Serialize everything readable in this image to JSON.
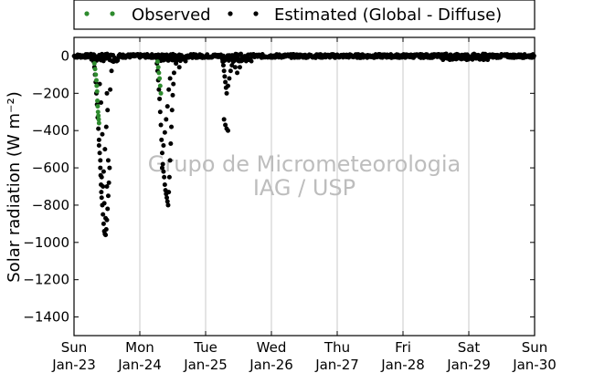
{
  "chart_data": {
    "type": "scatter",
    "title": "",
    "ylabel": "Solar radiation (W m⁻²)",
    "ylim": [
      -1500,
      100
    ],
    "yticks": [
      0,
      -200,
      -400,
      -600,
      -800,
      -1000,
      -1200,
      -1400
    ],
    "xlim": [
      0,
      7
    ],
    "x_ticks": [
      {
        "day": 0,
        "line1": "Sun",
        "line2": "Jan-23"
      },
      {
        "day": 1,
        "line1": "Mon",
        "line2": "Jan-24"
      },
      {
        "day": 2,
        "line1": "Tue",
        "line2": "Jan-25"
      },
      {
        "day": 3,
        "line1": "Wed",
        "line2": "Jan-26"
      },
      {
        "day": 4,
        "line1": "Thu",
        "line2": "Jan-27"
      },
      {
        "day": 5,
        "line1": "Fri",
        "line2": "Jan-28"
      },
      {
        "day": 6,
        "line1": "Sat",
        "line2": "Jan-29"
      },
      {
        "day": 7,
        "line1": "Sun",
        "line2": "Jan-30"
      }
    ],
    "grid": "vertical",
    "legend_position": "top",
    "series": [
      {
        "name": "Observed",
        "color": "#2e8b2e",
        "points": [
          [
            0.31,
            -40
          ],
          [
            0.32,
            -70
          ],
          [
            0.33,
            -100
          ],
          [
            0.34,
            -130
          ],
          [
            0.345,
            -160
          ],
          [
            0.35,
            -190
          ],
          [
            0.355,
            -240
          ],
          [
            0.36,
            -270
          ],
          [
            0.365,
            -300
          ],
          [
            0.37,
            -320
          ],
          [
            0.375,
            -340
          ],
          [
            0.38,
            -360
          ],
          [
            1.27,
            -30
          ],
          [
            1.28,
            -60
          ],
          [
            1.29,
            -90
          ],
          [
            1.3,
            -120
          ],
          [
            1.31,
            -160
          ],
          [
            1.32,
            -200
          ]
        ]
      },
      {
        "name": "Estimated (Global - Diffuse)",
        "color": "#000000",
        "points": [
          [
            0.29,
            -10
          ],
          [
            0.3,
            -30
          ],
          [
            0.31,
            -60
          ],
          [
            0.32,
            -100
          ],
          [
            0.33,
            -140
          ],
          [
            0.34,
            -200
          ],
          [
            0.35,
            -260
          ],
          [
            0.36,
            -330
          ],
          [
            0.37,
            -390
          ],
          [
            0.38,
            -450
          ],
          [
            0.39,
            -520
          ],
          [
            0.4,
            -600
          ],
          [
            0.405,
            -640
          ],
          [
            0.41,
            -690
          ],
          [
            0.415,
            -730
          ],
          [
            0.42,
            -760
          ],
          [
            0.43,
            -800
          ],
          [
            0.44,
            -850
          ],
          [
            0.45,
            -900
          ],
          [
            0.46,
            -940
          ],
          [
            0.47,
            -955
          ],
          [
            0.48,
            -960
          ],
          [
            0.49,
            -930
          ],
          [
            0.5,
            -880
          ],
          [
            0.51,
            -820
          ],
          [
            0.52,
            -750
          ],
          [
            0.53,
            -680
          ],
          [
            0.54,
            -600
          ],
          [
            0.38,
            -480
          ],
          [
            0.4,
            -560
          ],
          [
            0.42,
            -650
          ],
          [
            0.44,
            -700
          ],
          [
            0.46,
            -790
          ],
          [
            0.48,
            -870
          ],
          [
            0.5,
            -700
          ],
          [
            0.52,
            -560
          ],
          [
            0.47,
            -500
          ],
          [
            0.49,
            -380
          ],
          [
            0.51,
            -290
          ],
          [
            0.55,
            -180
          ],
          [
            0.57,
            -80
          ],
          [
            0.6,
            -30
          ],
          [
            0.62,
            -10
          ],
          [
            0.45,
            -620
          ],
          [
            0.43,
            -420
          ],
          [
            0.41,
            -250
          ],
          [
            0.39,
            -150
          ],
          [
            0.5,
            -200
          ],
          [
            1.25,
            -10
          ],
          [
            1.26,
            -40
          ],
          [
            1.27,
            -80
          ],
          [
            1.28,
            -130
          ],
          [
            1.29,
            -180
          ],
          [
            1.3,
            -230
          ],
          [
            1.31,
            -300
          ],
          [
            1.32,
            -370
          ],
          [
            1.33,
            -450
          ],
          [
            1.34,
            -520
          ],
          [
            1.35,
            -580
          ],
          [
            1.36,
            -620
          ],
          [
            1.37,
            -650
          ],
          [
            1.38,
            -690
          ],
          [
            1.39,
            -720
          ],
          [
            1.4,
            -740
          ],
          [
            1.41,
            -760
          ],
          [
            1.42,
            -780
          ],
          [
            1.43,
            -800
          ],
          [
            1.44,
            -730
          ],
          [
            1.45,
            -650
          ],
          [
            1.46,
            -560
          ],
          [
            1.47,
            -470
          ],
          [
            1.48,
            -380
          ],
          [
            1.49,
            -290
          ],
          [
            1.5,
            -210
          ],
          [
            1.51,
            -150
          ],
          [
            1.52,
            -90
          ],
          [
            1.36,
            -480
          ],
          [
            1.38,
            -410
          ],
          [
            1.4,
            -340
          ],
          [
            1.42,
            -270
          ],
          [
            1.44,
            -180
          ],
          [
            1.46,
            -120
          ],
          [
            1.34,
            -600
          ],
          [
            1.55,
            -40
          ],
          [
            1.58,
            -15
          ],
          [
            1.6,
            -60
          ],
          [
            2.25,
            -10
          ],
          [
            2.26,
            -30
          ],
          [
            2.27,
            -50
          ],
          [
            2.28,
            -80
          ],
          [
            2.29,
            -110
          ],
          [
            2.3,
            -140
          ],
          [
            2.31,
            -170
          ],
          [
            2.32,
            -200
          ],
          [
            2.34,
            -160
          ],
          [
            2.36,
            -120
          ],
          [
            2.38,
            -80
          ],
          [
            2.4,
            -50
          ],
          [
            2.42,
            -30
          ],
          [
            2.45,
            -60
          ],
          [
            2.48,
            -90
          ],
          [
            2.52,
            -60
          ],
          [
            2.28,
            -340
          ],
          [
            2.3,
            -370
          ],
          [
            2.32,
            -390
          ],
          [
            2.34,
            -400
          ]
        ]
      }
    ]
  },
  "watermark": {
    "line1": "Grupo de Micrometeorologia",
    "line2": "IAG / USP"
  }
}
